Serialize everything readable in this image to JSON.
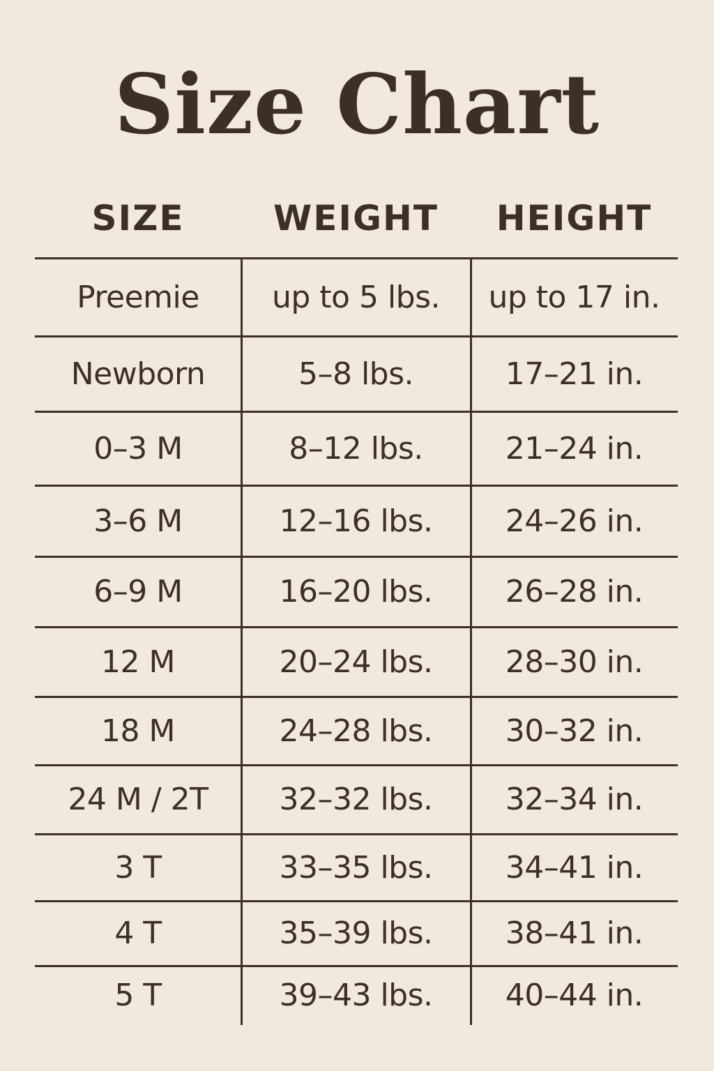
{
  "title": "Size Chart",
  "headers": [
    "SIZE",
    "WEIGHT",
    "HEIGHT"
  ],
  "rows": [
    [
      "Preemie",
      "up to 5 lbs.",
      "up to 17 in."
    ],
    [
      "Newborn",
      "5–8 lbs.",
      "17–21 in."
    ],
    [
      "0–3 M",
      "8–12 lbs.",
      "21–24 in."
    ],
    [
      "3–6 M",
      "12–16 lbs.",
      "24–26 in."
    ],
    [
      "6–9 M",
      "16–20 lbs.",
      "26–28 in."
    ],
    [
      "12 M",
      "20–24 lbs.",
      "28–30 in."
    ],
    [
      "18 M",
      "24–28 lbs.",
      "30–32 in."
    ],
    [
      "24 M / 2T",
      "32–32 lbs.",
      "32–34 in."
    ],
    [
      "3 T",
      "33–35 lbs.",
      "34–41 in."
    ],
    [
      "4 T",
      "35–39 lbs.",
      "38–41 in."
    ],
    [
      "5 T",
      "39–43 lbs.",
      "40–44 in."
    ]
  ],
  "colors": {
    "background": "#f1e9dd",
    "text": "#3b2f28"
  }
}
